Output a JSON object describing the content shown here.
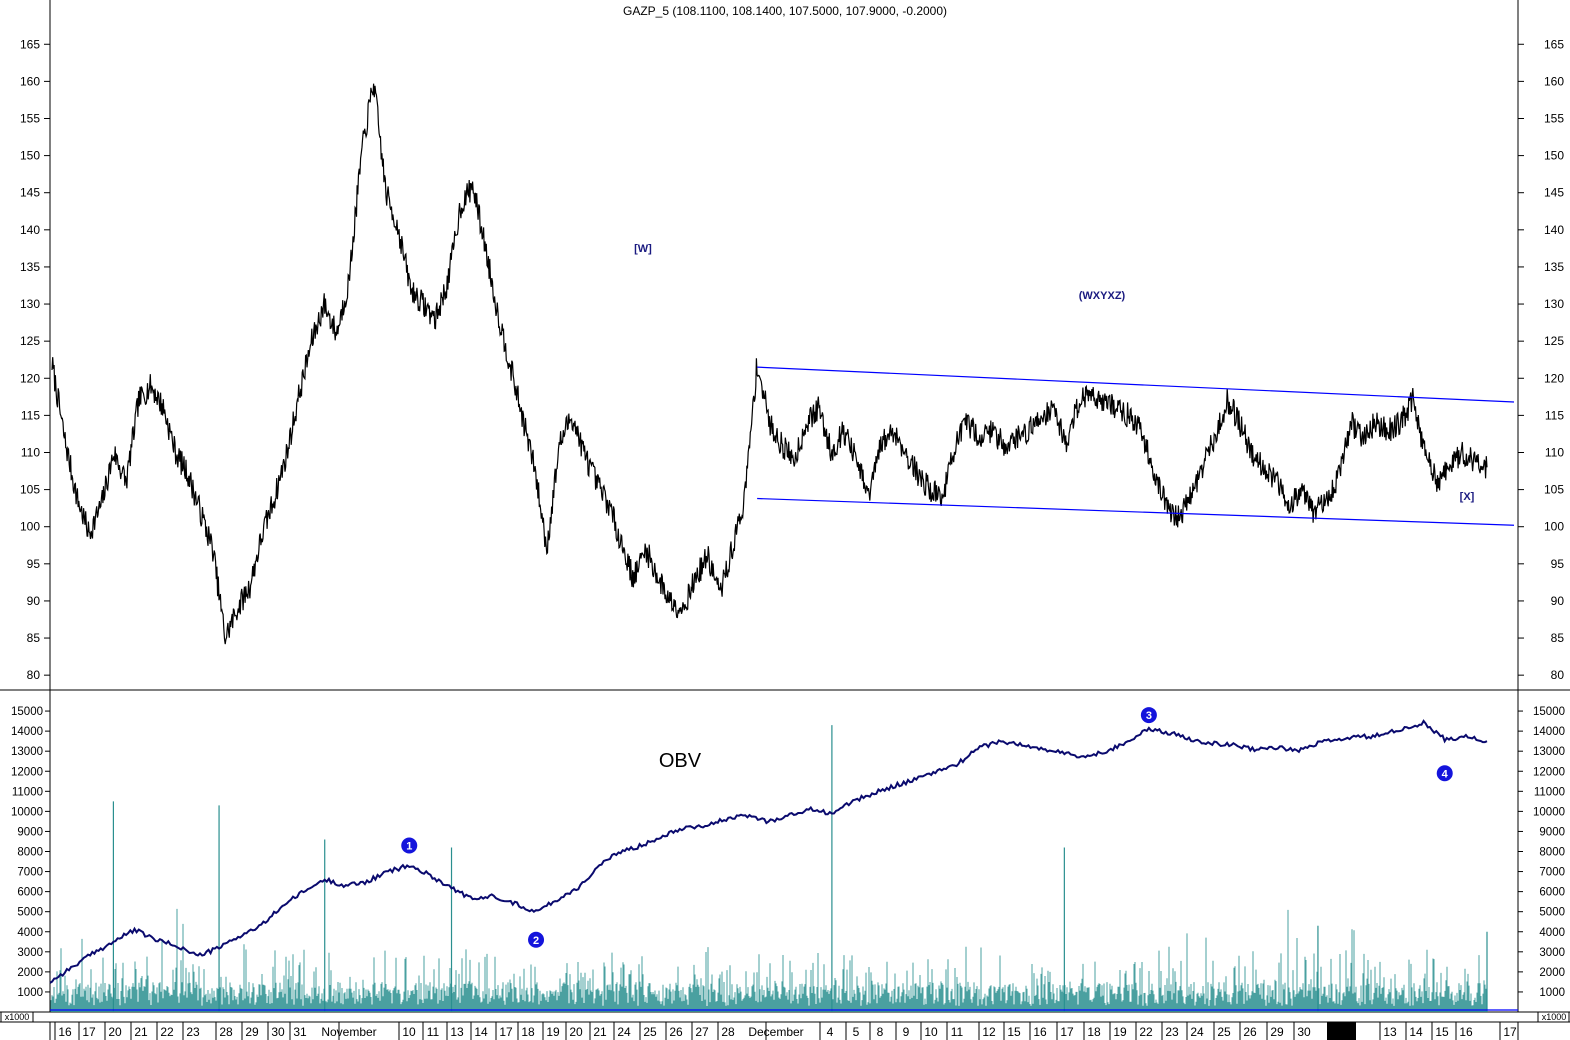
{
  "chart_data": [
    {
      "type": "line",
      "title": "GAZP_5 (108.1100, 108.1400, 107.5000, 107.9000, -0.2000)",
      "ylim": [
        78,
        168
      ],
      "y_ticks": [
        80,
        85,
        90,
        95,
        100,
        105,
        110,
        115,
        120,
        125,
        130,
        135,
        140,
        145,
        150,
        155,
        160,
        165
      ],
      "grid": false,
      "series": [
        {
          "color": "#000000",
          "values": [
            122,
            112,
            104,
            99,
            103,
            110,
            106,
            117,
            119,
            116,
            110,
            107,
            102,
            97,
            85,
            89,
            92,
            99,
            104,
            110,
            118,
            125,
            130,
            126,
            133,
            150,
            160,
            145,
            140,
            132,
            130,
            128,
            133,
            143,
            146,
            138,
            129,
            122,
            115,
            108,
            97,
            111,
            115,
            110,
            106,
            103,
            98,
            93,
            97,
            93,
            90,
            89,
            93,
            96,
            91,
            97,
            104,
            122,
            114,
            111,
            109,
            114,
            116,
            110,
            113,
            109,
            104,
            111,
            113,
            110,
            107,
            105,
            104,
            111,
            114,
            112,
            113,
            111,
            112,
            113,
            115,
            116,
            111,
            117,
            118,
            117,
            116,
            115,
            113,
            108,
            103,
            101,
            104,
            108,
            112,
            117,
            114,
            110,
            108,
            106,
            103,
            105,
            102,
            103,
            107,
            114,
            112,
            114,
            113,
            114,
            117,
            110,
            106,
            108,
            110,
            109,
            108
          ]
        }
      ],
      "annotations": [
        {
          "text": "[W]",
          "x_index": 57
        },
        {
          "text": "(WXYXZ)"
        },
        {
          "text": "[X]"
        }
      ],
      "trendlines": [
        {
          "color": "#0000ff",
          "from": [
            57,
            121.5
          ],
          "to": [
            116,
            116.8
          ]
        },
        {
          "color": "#0000ff",
          "from": [
            57,
            103.8
          ],
          "to": [
            116,
            100.2
          ]
        }
      ]
    },
    {
      "type": "line",
      "title": "OBV",
      "ylim": [
        0,
        16000
      ],
      "y_ticks": [
        1000,
        2000,
        3000,
        4000,
        5000,
        6000,
        7000,
        8000,
        9000,
        10000,
        11000,
        12000,
        13000,
        14000,
        15000
      ],
      "y_unit_label": "x1000",
      "obv": {
        "color": "#0a0a6e",
        "values": [
          1500,
          2200,
          2900,
          3500,
          4100,
          3600,
          3300,
          2800,
          3200,
          3800,
          4300,
          5300,
          6000,
          6600,
          6300,
          6500,
          7000,
          7300,
          6800,
          6200,
          5600,
          5800,
          5400,
          5000,
          5600,
          6200,
          7300,
          8000,
          8300,
          8800,
          9200,
          9300,
          9600,
          9800,
          9500,
          9800,
          10100,
          9900,
          10500,
          10900,
          11300,
          11600,
          12000,
          12400,
          13200,
          13500,
          13300,
          13100,
          12900,
          12700,
          13000,
          13500,
          14100,
          13900,
          13600,
          13400,
          13300,
          13100,
          13200,
          13000,
          13400,
          13600,
          13700,
          13800,
          14100,
          14400,
          13600,
          13700,
          13500
        ]
      },
      "volume": {
        "color": "#2a8f8f",
        "spikes": [
          {
            "x_index": 3,
            "value": 10500
          },
          {
            "x_index": 8,
            "value": 10300
          },
          {
            "x_index": 13,
            "value": 8600
          },
          {
            "x_index": 19,
            "value": 8200
          },
          {
            "x_index": 37,
            "value": 14300
          },
          {
            "x_index": 48,
            "value": 8200
          },
          {
            "x_index": 60,
            "value": 4300
          },
          {
            "x_index": 68,
            "value": 4000
          }
        ]
      },
      "markers": [
        {
          "label": "1",
          "x_index": 17,
          "value": 8300
        },
        {
          "label": "2",
          "x_index": 23,
          "value": 3600
        },
        {
          "label": "3",
          "x_index": 52,
          "value": 14800
        },
        {
          "label": "4",
          "x_index": 66,
          "value": 11900
        }
      ]
    }
  ],
  "x_axis": {
    "labels": [
      "16",
      "17",
      "20",
      "21",
      "22",
      "23",
      "28",
      "29",
      "30",
      "31",
      "November",
      "10",
      "11",
      "13",
      "14",
      "17",
      "18",
      "19",
      "20",
      "21",
      "24",
      "25",
      "26",
      "27",
      "28",
      "December",
      "4",
      "5",
      "8",
      "9",
      "10",
      "11",
      "12",
      "15",
      "16",
      "17",
      "18",
      "19",
      "22",
      "23",
      "24",
      "25",
      "26",
      "29",
      "30",
      "13",
      "14",
      "15",
      "16",
      "17"
    ]
  }
}
